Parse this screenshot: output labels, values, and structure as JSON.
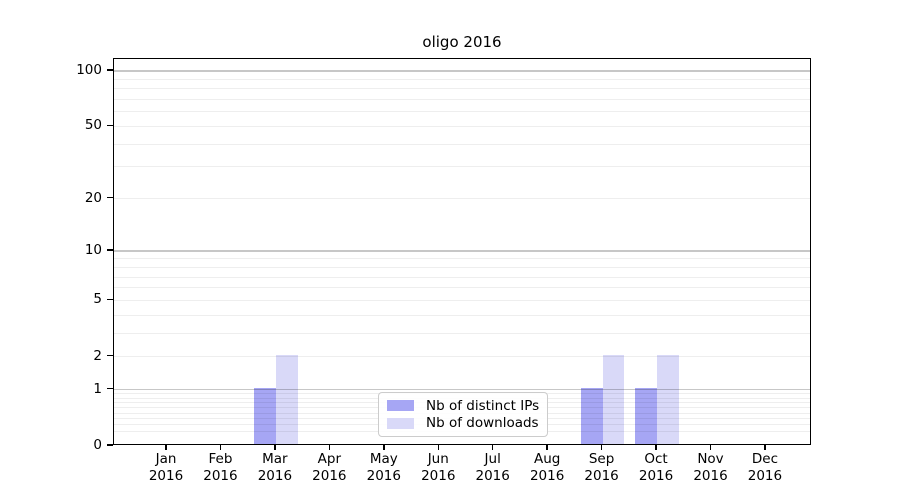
{
  "chart_data": {
    "type": "bar",
    "title": "oligo 2016",
    "categories": [
      "Jan",
      "Feb",
      "Mar",
      "Apr",
      "May",
      "Jun",
      "Jul",
      "Aug",
      "Sep",
      "Oct",
      "Nov",
      "Dec"
    ],
    "year_label": "2016",
    "series": [
      {
        "name": "Nb of distinct IPs",
        "color": "#a6a6f4",
        "values": [
          0,
          0,
          1,
          0,
          0,
          0,
          0,
          0,
          1,
          1,
          0,
          0
        ]
      },
      {
        "name": "Nb of downloads",
        "color": "#d9d9f8",
        "values": [
          0,
          0,
          2,
          0,
          0,
          0,
          0,
          0,
          2,
          2,
          0,
          0
        ]
      }
    ],
    "xlabel": "",
    "ylabel": "",
    "y_scale": "log1p",
    "ylim": [
      0,
      116
    ],
    "y_ticks": [
      0,
      1,
      2,
      5,
      10,
      20,
      50,
      100
    ],
    "y_major_grid": [
      1,
      10,
      100
    ],
    "y_minor_grid": [
      0.2,
      0.3,
      0.4,
      0.5,
      0.6,
      0.7,
      0.8,
      0.9,
      2,
      3,
      4,
      5,
      6,
      7,
      8,
      9,
      20,
      30,
      40,
      50,
      60,
      70,
      80,
      90
    ],
    "grid": "horizontal",
    "legend_position": "lower center",
    "spine_color": "#000000",
    "major_grid_color": "#c6c6c6",
    "minor_grid_color": "#eeeeee"
  }
}
